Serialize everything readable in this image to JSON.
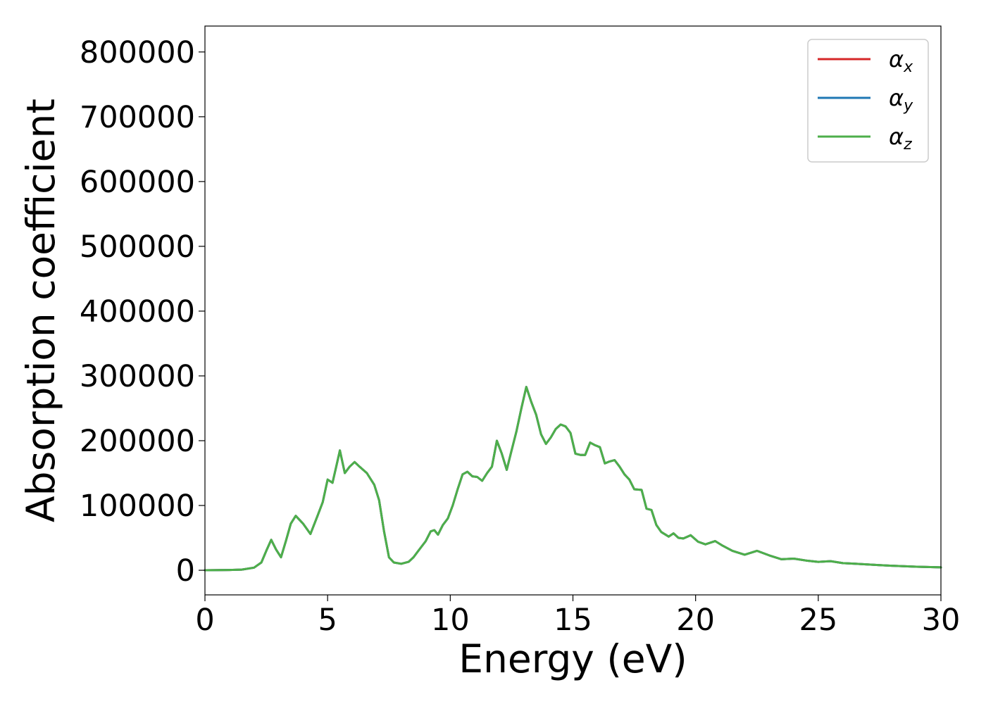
{
  "chart_data": {
    "type": "line",
    "xlabel": "Energy (eV)",
    "ylabel": "Absorption coefficient",
    "xlim": [
      0,
      30
    ],
    "ylim": [
      -38000,
      840000
    ],
    "xticks": [
      0,
      5,
      10,
      15,
      20,
      25,
      30
    ],
    "yticks": [
      0,
      100000,
      200000,
      300000,
      400000,
      500000,
      600000,
      700000,
      800000
    ],
    "grid": false,
    "legend_position": "top-right",
    "series": [
      {
        "name": "α",
        "subscript": "x",
        "color": "#d62728",
        "x": [
          0,
          1,
          1.5,
          2,
          2.3,
          2.5,
          2.7,
          2.9,
          3.1,
          3.3,
          3.5,
          3.7,
          4.0,
          4.3,
          4.6,
          4.8,
          5.0,
          5.2,
          5.35,
          5.5,
          5.7,
          5.9,
          6.1,
          6.3,
          6.6,
          6.9,
          7.1,
          7.3,
          7.5,
          7.7,
          8.0,
          8.3,
          8.5,
          8.7,
          9.0,
          9.2,
          9.35,
          9.5,
          9.7,
          9.9,
          10.1,
          10.3,
          10.5,
          10.7,
          10.9,
          11.1,
          11.3,
          11.5,
          11.7,
          11.9,
          12.1,
          12.3,
          12.5,
          12.7,
          12.9,
          13.1,
          13.3,
          13.5,
          13.7,
          13.9,
          14.1,
          14.3,
          14.5,
          14.7,
          14.9,
          15.1,
          15.3,
          15.5,
          15.7,
          15.9,
          16.1,
          16.3,
          16.5,
          16.7,
          16.9,
          17.1,
          17.3,
          17.5,
          17.8,
          18.0,
          18.2,
          18.4,
          18.6,
          18.9,
          19.1,
          19.3,
          19.5,
          19.8,
          20.1,
          20.4,
          20.8,
          21.1,
          21.5,
          22.0,
          22.5,
          23.0,
          23.5,
          24.0,
          24.5,
          25.0,
          25.5,
          26.0,
          26.5,
          27.0,
          27.5,
          28.0,
          29.0,
          30.0
        ],
        "y": [
          0,
          500,
          1000,
          4000,
          12000,
          30000,
          47000,
          32000,
          20000,
          45000,
          72000,
          84000,
          72000,
          56000,
          85000,
          105000,
          140000,
          135000,
          160000,
          185000,
          150000,
          160000,
          167000,
          160000,
          150000,
          132000,
          108000,
          60000,
          20000,
          12000,
          10000,
          13000,
          20000,
          30000,
          45000,
          60000,
          62000,
          55000,
          70000,
          80000,
          100000,
          125000,
          148000,
          152000,
          145000,
          144000,
          138000,
          150000,
          160000,
          200000,
          180000,
          155000,
          185000,
          215000,
          250000,
          283000,
          260000,
          240000,
          210000,
          195000,
          205000,
          218000,
          225000,
          222000,
          212000,
          180000,
          178000,
          178000,
          197000,
          193000,
          190000,
          165000,
          168000,
          170000,
          160000,
          148000,
          140000,
          125000,
          124000,
          95000,
          93000,
          70000,
          59000,
          52000,
          57000,
          50000,
          49000,
          54000,
          44000,
          40000,
          45000,
          38000,
          30000,
          24000,
          30000,
          23000,
          17000,
          18000,
          15000,
          13000,
          14000,
          11000,
          10000,
          9000,
          8000,
          7000,
          5500,
          4500
        ]
      },
      {
        "name": "α",
        "subscript": "y",
        "color": "#1f77b4",
        "x": [
          0,
          1,
          1.5,
          2,
          2.3,
          2.5,
          2.7,
          2.9,
          3.1,
          3.3,
          3.5,
          3.7,
          4.0,
          4.3,
          4.6,
          4.8,
          5.0,
          5.2,
          5.35,
          5.5,
          5.7,
          5.9,
          6.1,
          6.3,
          6.6,
          6.9,
          7.1,
          7.3,
          7.5,
          7.7,
          8.0,
          8.3,
          8.5,
          8.7,
          9.0,
          9.2,
          9.35,
          9.5,
          9.7,
          9.9,
          10.1,
          10.3,
          10.5,
          10.7,
          10.9,
          11.1,
          11.3,
          11.5,
          11.7,
          11.9,
          12.1,
          12.3,
          12.5,
          12.7,
          12.9,
          13.1,
          13.3,
          13.5,
          13.7,
          13.9,
          14.1,
          14.3,
          14.5,
          14.7,
          14.9,
          15.1,
          15.3,
          15.5,
          15.7,
          15.9,
          16.1,
          16.3,
          16.5,
          16.7,
          16.9,
          17.1,
          17.3,
          17.5,
          17.8,
          18.0,
          18.2,
          18.4,
          18.6,
          18.9,
          19.1,
          19.3,
          19.5,
          19.8,
          20.1,
          20.4,
          20.8,
          21.1,
          21.5,
          22.0,
          22.5,
          23.0,
          23.5,
          24.0,
          24.5,
          25.0,
          25.5,
          26.0,
          26.5,
          27.0,
          27.5,
          28.0,
          29.0,
          30.0
        ],
        "y": [
          0,
          500,
          1000,
          4000,
          12000,
          30000,
          47000,
          32000,
          20000,
          45000,
          72000,
          84000,
          72000,
          56000,
          85000,
          105000,
          140000,
          135000,
          160000,
          185000,
          150000,
          160000,
          167000,
          160000,
          150000,
          132000,
          108000,
          60000,
          20000,
          12000,
          10000,
          13000,
          20000,
          30000,
          45000,
          60000,
          62000,
          55000,
          70000,
          80000,
          100000,
          125000,
          148000,
          152000,
          145000,
          144000,
          138000,
          150000,
          160000,
          200000,
          180000,
          155000,
          185000,
          215000,
          250000,
          283000,
          260000,
          240000,
          210000,
          195000,
          205000,
          218000,
          225000,
          222000,
          212000,
          180000,
          178000,
          178000,
          197000,
          193000,
          190000,
          165000,
          168000,
          170000,
          160000,
          148000,
          140000,
          125000,
          124000,
          95000,
          93000,
          70000,
          59000,
          52000,
          57000,
          50000,
          49000,
          54000,
          44000,
          40000,
          45000,
          38000,
          30000,
          24000,
          30000,
          23000,
          17000,
          18000,
          15000,
          13000,
          14000,
          11000,
          10000,
          9000,
          8000,
          7000,
          5500,
          4500
        ]
      },
      {
        "name": "α",
        "subscript": "z",
        "color": "#4daf4a",
        "x": [
          0,
          1,
          1.5,
          2,
          2.3,
          2.5,
          2.7,
          2.9,
          3.1,
          3.3,
          3.5,
          3.7,
          4.0,
          4.3,
          4.6,
          4.8,
          5.0,
          5.2,
          5.35,
          5.5,
          5.7,
          5.9,
          6.1,
          6.3,
          6.6,
          6.9,
          7.1,
          7.3,
          7.5,
          7.7,
          8.0,
          8.3,
          8.5,
          8.7,
          9.0,
          9.2,
          9.35,
          9.5,
          9.7,
          9.9,
          10.1,
          10.3,
          10.5,
          10.7,
          10.9,
          11.1,
          11.3,
          11.5,
          11.7,
          11.9,
          12.1,
          12.3,
          12.5,
          12.7,
          12.9,
          13.1,
          13.3,
          13.5,
          13.7,
          13.9,
          14.1,
          14.3,
          14.5,
          14.7,
          14.9,
          15.1,
          15.3,
          15.5,
          15.7,
          15.9,
          16.1,
          16.3,
          16.5,
          16.7,
          16.9,
          17.1,
          17.3,
          17.5,
          17.8,
          18.0,
          18.2,
          18.4,
          18.6,
          18.9,
          19.1,
          19.3,
          19.5,
          19.8,
          20.1,
          20.4,
          20.8,
          21.1,
          21.5,
          22.0,
          22.5,
          23.0,
          23.5,
          24.0,
          24.5,
          25.0,
          25.5,
          26.0,
          26.5,
          27.0,
          27.5,
          28.0,
          29.0,
          30.0
        ],
        "y": [
          0,
          500,
          1000,
          4000,
          12000,
          30000,
          47000,
          32000,
          20000,
          45000,
          72000,
          84000,
          72000,
          56000,
          85000,
          105000,
          140000,
          135000,
          160000,
          185000,
          150000,
          160000,
          167000,
          160000,
          150000,
          132000,
          108000,
          60000,
          20000,
          12000,
          10000,
          13000,
          20000,
          30000,
          45000,
          60000,
          62000,
          55000,
          70000,
          80000,
          100000,
          125000,
          148000,
          152000,
          145000,
          144000,
          138000,
          150000,
          160000,
          200000,
          180000,
          155000,
          185000,
          215000,
          250000,
          283000,
          260000,
          240000,
          210000,
          195000,
          205000,
          218000,
          225000,
          222000,
          212000,
          180000,
          178000,
          178000,
          197000,
          193000,
          190000,
          165000,
          168000,
          170000,
          160000,
          148000,
          140000,
          125000,
          124000,
          95000,
          93000,
          70000,
          59000,
          52000,
          57000,
          50000,
          49000,
          54000,
          44000,
          40000,
          45000,
          38000,
          30000,
          24000,
          30000,
          23000,
          17000,
          18000,
          15000,
          13000,
          14000,
          11000,
          10000,
          9000,
          8000,
          7000,
          5500,
          4500
        ]
      }
    ]
  }
}
